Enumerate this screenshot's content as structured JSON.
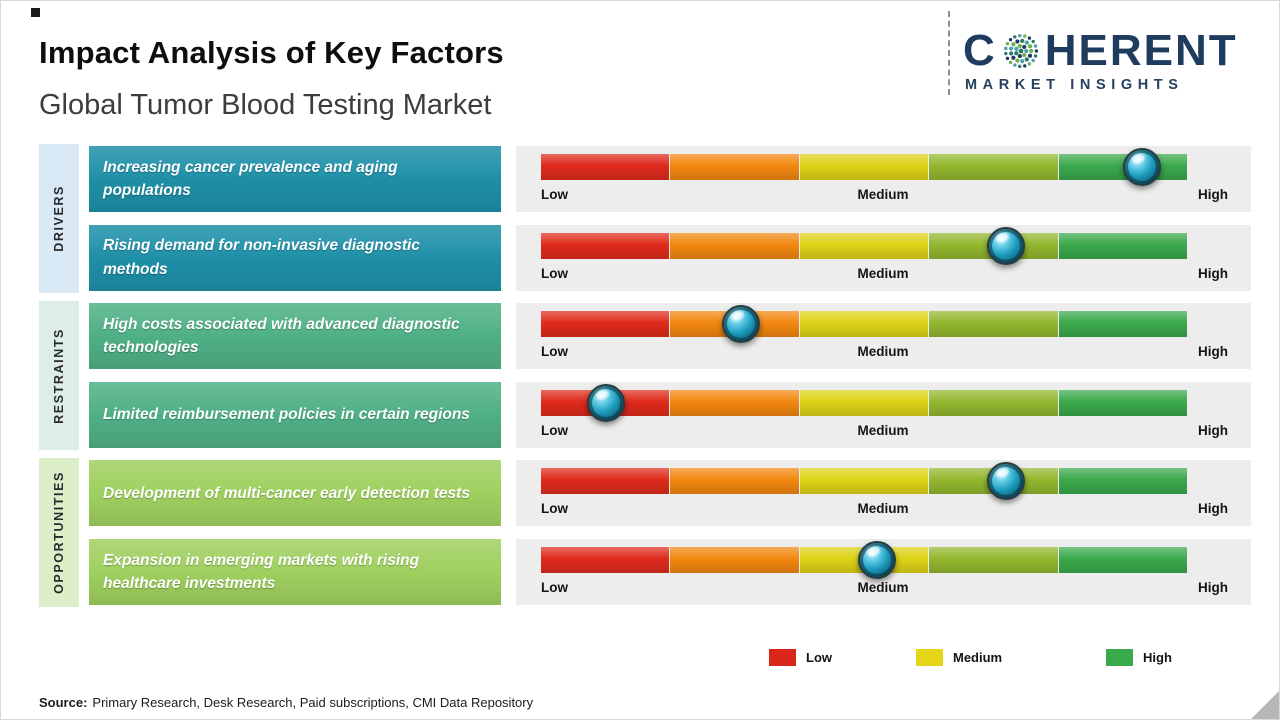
{
  "header": {
    "title": "Impact Analysis of Key Factors",
    "subtitle": "Global Tumor Blood Testing Market"
  },
  "logo": {
    "letter": "C",
    "rest": "HERENT",
    "tagline": "MARKET INSIGHTS",
    "brand_color": "#1f3b5e"
  },
  "scale_labels": {
    "low": "Low",
    "medium": "Medium",
    "high": "High"
  },
  "categories": [
    {
      "name": "DRIVERS",
      "strip_color": "#d9eaf6",
      "box_color": "#1e90a8",
      "factors": [
        {
          "label": "Increasing cancer prevalence and aging populations",
          "impact_percent": 93
        },
        {
          "label": "Rising demand for non-invasive diagnostic methods",
          "impact_percent": 72
        }
      ]
    },
    {
      "name": "RESTRAINTS",
      "strip_color": "#ddeee6",
      "box_color": "#4fb086",
      "factors": [
        {
          "label": "High costs associated with advanced diagnostic technologies",
          "impact_percent": 31
        },
        {
          "label": "Limited reimbursement policies in certain regions",
          "impact_percent": 10
        }
      ]
    },
    {
      "name": "OPPORTUNITIES",
      "strip_color": "#dcedc9",
      "box_color": "#9fd05f",
      "factors": [
        {
          "label": "Development of multi-cancer early detection tests",
          "impact_percent": 72
        },
        {
          "label": "Expansion in emerging markets with rising healthcare investments",
          "impact_percent": 52
        }
      ]
    }
  ],
  "bar": {
    "segment_names": [
      "red",
      "orange",
      "yellow",
      "olive",
      "green"
    ],
    "segment_colors": [
      "#df2b1c",
      "#f2870f",
      "#ddd317",
      "#93b72e",
      "#3aa94c"
    ]
  },
  "legend": [
    {
      "label": "Low",
      "color": "#d8271a"
    },
    {
      "label": "Medium",
      "color": "#e4d617"
    },
    {
      "label": "High",
      "color": "#3aa94c"
    }
  ],
  "source": {
    "prefix": "Source:",
    "text": "Primary Research, Desk Research, Paid subscriptions, CMI Data Repository"
  },
  "chart_data": {
    "type": "bar",
    "title": "Impact Analysis of Key Factors",
    "subtitle": "Global Tumor Blood Testing Market",
    "scale": [
      "Low",
      "Medium",
      "High"
    ],
    "legend_position": "bottom",
    "series": [
      {
        "category": "Drivers",
        "label": "Increasing cancer prevalence and aging populations",
        "impact_percent": 93,
        "impact_level": "High"
      },
      {
        "category": "Drivers",
        "label": "Rising demand for non-invasive diagnostic methods",
        "impact_percent": 72,
        "impact_level": "Medium-High"
      },
      {
        "category": "Restraints",
        "label": "High costs associated with advanced diagnostic technologies",
        "impact_percent": 31,
        "impact_level": "Low-Medium"
      },
      {
        "category": "Restraints",
        "label": "Limited reimbursement policies in certain regions",
        "impact_percent": 10,
        "impact_level": "Low"
      },
      {
        "category": "Opportunities",
        "label": "Development of multi-cancer early detection tests",
        "impact_percent": 72,
        "impact_level": "Medium-High"
      },
      {
        "category": "Opportunities",
        "label": "Expansion in emerging markets with rising healthcare investments",
        "impact_percent": 52,
        "impact_level": "Medium"
      }
    ]
  }
}
